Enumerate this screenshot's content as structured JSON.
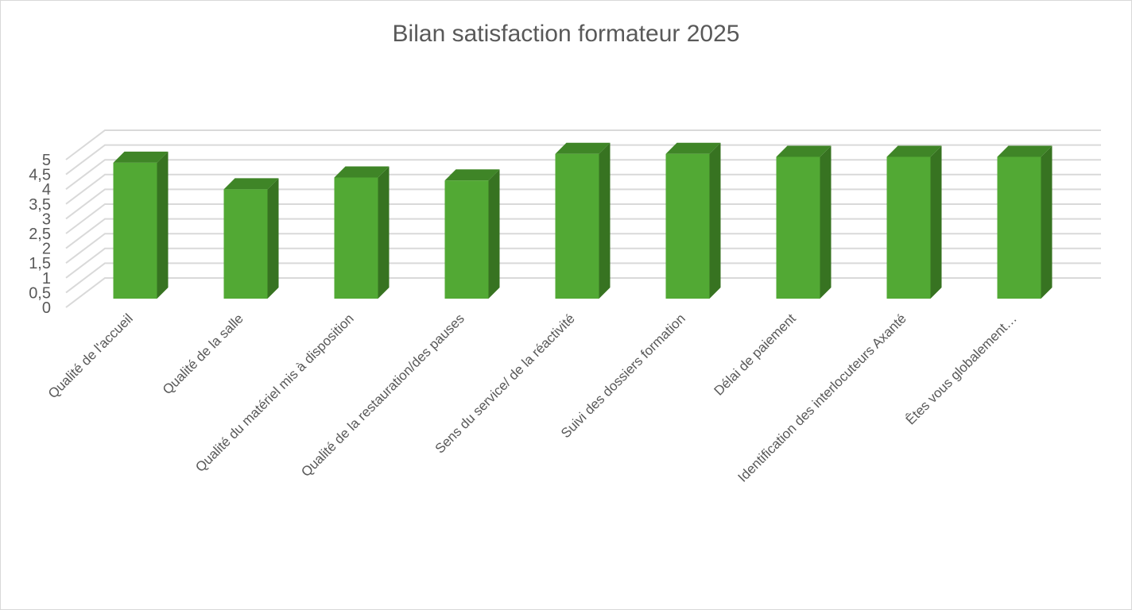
{
  "chart_data": {
    "type": "bar",
    "style": "3d-column",
    "title": "Bilan satisfaction formateur 2025",
    "xlabel": "",
    "ylabel": "",
    "ylim": [
      0,
      5
    ],
    "yticks": [
      "0",
      "0,5",
      "1",
      "1,5",
      "2",
      "2,5",
      "3",
      "3,5",
      "4",
      "4,5",
      "5"
    ],
    "grid": true,
    "legend": "none",
    "categories": [
      "Qualité de l'accueil",
      "Qualité de la salle",
      "Qualité du matériel mis à disposition",
      "Qualité de la restauration/des pauses",
      "Sens du service/ de la réactivité",
      "Suivi des dossiers formation",
      "Délai de paiement",
      "Identification des interlocuteurs Axanté",
      "Êtes vous globalement…"
    ],
    "values": [
      4.6,
      3.7,
      4.1,
      4.0,
      4.9,
      4.9,
      4.8,
      4.8,
      4.8
    ],
    "colors": {
      "front": "#52a934",
      "side": "#377321",
      "top": "#3f8527",
      "grid": "#d9d9d9",
      "text": "#595959"
    }
  }
}
